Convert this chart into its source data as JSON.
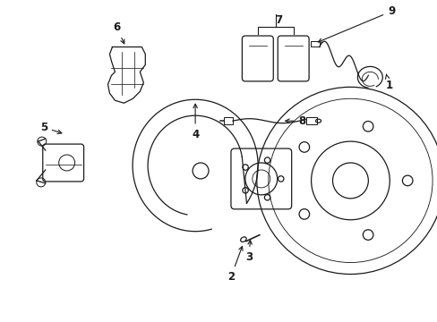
{
  "bg_color": "#ffffff",
  "line_color": "#1a1a1a",
  "line_width": 0.9
}
